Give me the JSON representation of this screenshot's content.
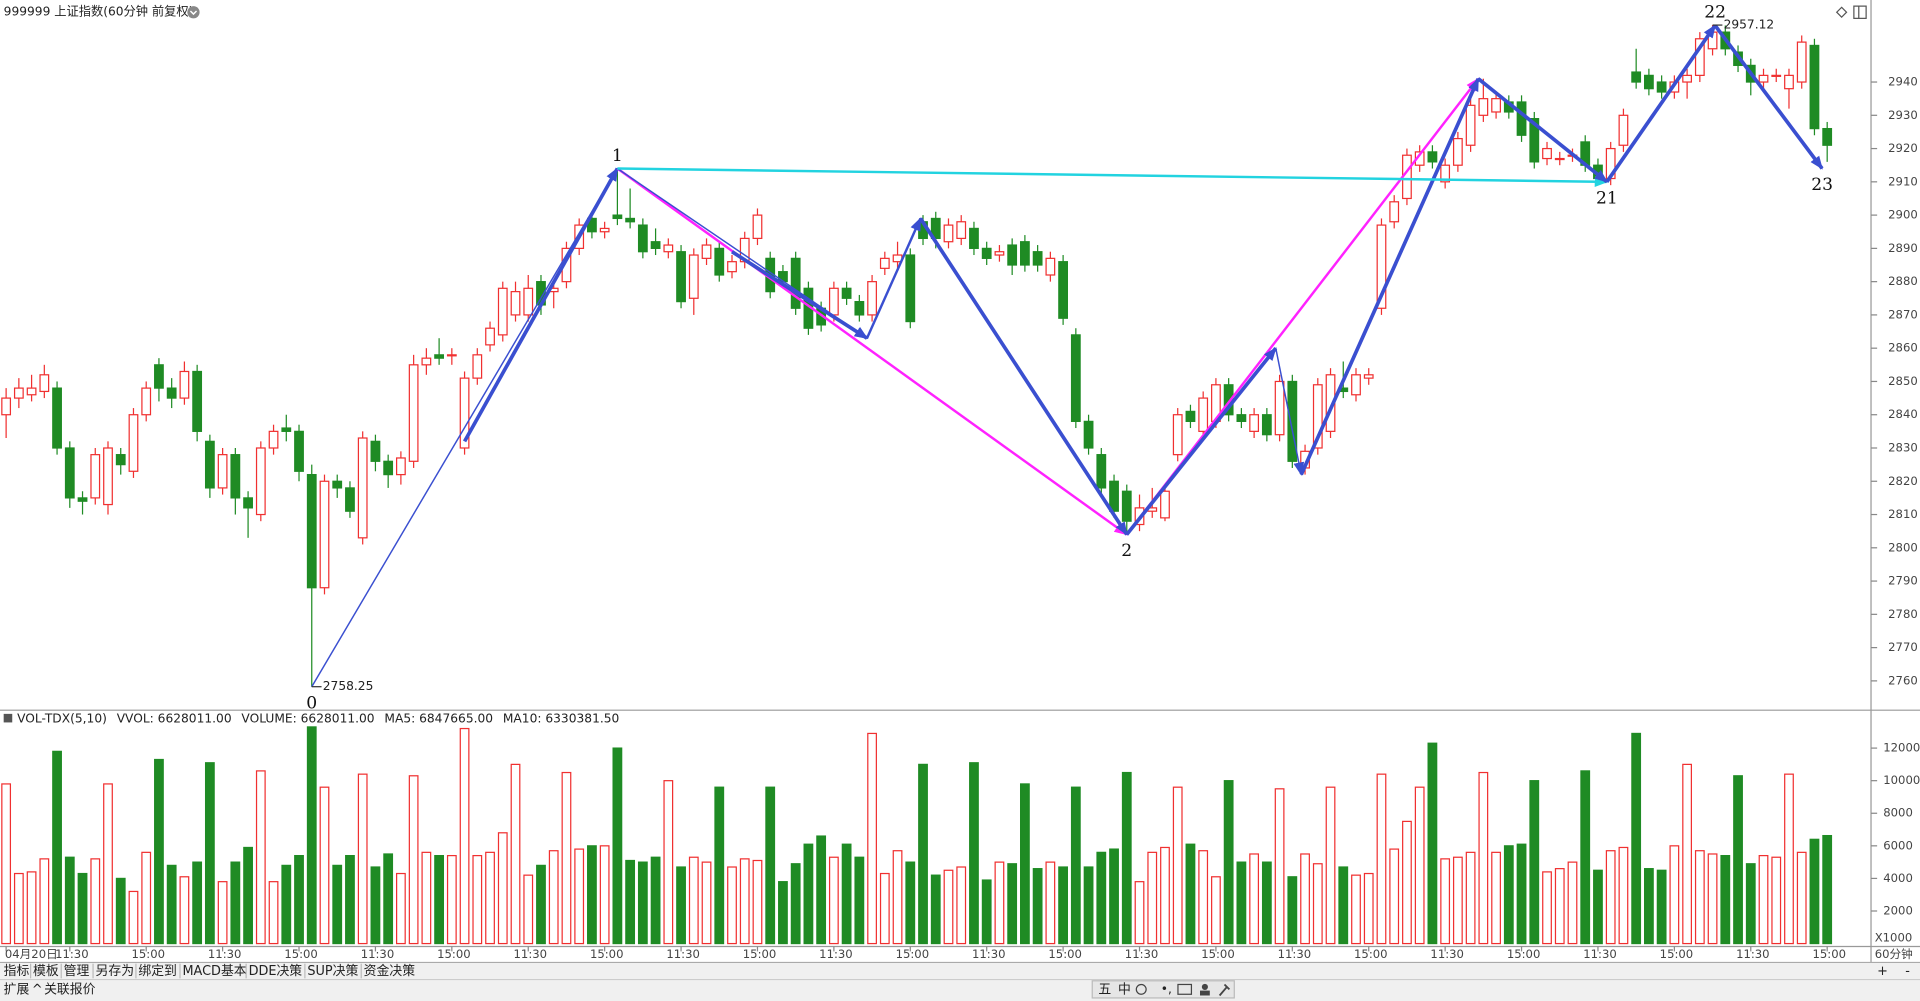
{
  "header": {
    "title": "999999 上证指数(60分钟 前复权)"
  },
  "chart_data": {
    "type": "candlestick",
    "up_color": "#f03030",
    "down_color": "#1f8b24",
    "grid": false,
    "categories": [
      "04月20日",
      null,
      null,
      null,
      null,
      "11:30",
      null,
      null,
      null,
      null,
      null,
      "15:00",
      null,
      null,
      null,
      null,
      null,
      "11:30",
      null,
      null,
      null,
      null,
      null,
      "15:00",
      null,
      null,
      null,
      null,
      null,
      "11:30",
      null,
      null,
      null,
      null,
      null,
      "15:00",
      null,
      null,
      null,
      null,
      null,
      "11:30",
      null,
      null,
      null,
      null,
      null,
      "15:00",
      null,
      null,
      null,
      null,
      null,
      "11:30",
      null,
      null,
      null,
      null,
      null,
      "15:00",
      null,
      null,
      null,
      null,
      null,
      "11:30",
      null,
      null,
      null,
      null,
      null,
      "15:00",
      null,
      null,
      null,
      null,
      null,
      "11:30",
      null,
      null,
      null,
      null,
      null,
      "15:00",
      null,
      null,
      null,
      null,
      null,
      "11:30",
      null,
      null,
      null,
      null,
      null,
      "15:00",
      null,
      null,
      null,
      null,
      null,
      "11:30",
      null,
      null,
      null,
      null,
      null,
      "15:00",
      null,
      null,
      null,
      null,
      null,
      "11:30",
      null,
      null,
      null,
      null,
      null,
      "15:00",
      null,
      null,
      null,
      null,
      null,
      "11:30",
      null,
      null,
      null,
      null,
      null,
      "15:00",
      null,
      null,
      null,
      null,
      null,
      "11:30",
      null,
      null,
      null,
      null,
      null,
      "15:00"
    ],
    "ohlc": [
      [
        2840,
        2848,
        2833,
        2845
      ],
      [
        2845,
        2851,
        2842,
        2848
      ],
      [
        2846,
        2852,
        2844,
        2848
      ],
      [
        2847,
        2855,
        2845,
        2852
      ],
      [
        2848,
        2850,
        2828,
        2830
      ],
      [
        2830,
        2832,
        2812,
        2815
      ],
      [
        2815,
        2817,
        2810,
        2814
      ],
      [
        2815,
        2830,
        2813,
        2828
      ],
      [
        2813,
        2832,
        2810,
        2830
      ],
      [
        2828,
        2830,
        2822,
        2825
      ],
      [
        2823,
        2842,
        2821,
        2840
      ],
      [
        2840,
        2850,
        2838,
        2848
      ],
      [
        2855,
        2857,
        2844,
        2848
      ],
      [
        2848,
        2851,
        2842,
        2845
      ],
      [
        2845,
        2856,
        2843,
        2853
      ],
      [
        2853,
        2855,
        2832,
        2835
      ],
      [
        2832,
        2834,
        2815,
        2818
      ],
      [
        2818,
        2830,
        2816,
        2828
      ],
      [
        2828,
        2830,
        2810,
        2815
      ],
      [
        2815,
        2817,
        2803,
        2812
      ],
      [
        2810,
        2832,
        2808,
        2830
      ],
      [
        2830,
        2837,
        2828,
        2835
      ],
      [
        2836,
        2840,
        2832,
        2835
      ],
      [
        2835,
        2837,
        2820,
        2823
      ],
      [
        2822,
        2825,
        2758.25,
        2788
      ],
      [
        2788,
        2822,
        2786,
        2820
      ],
      [
        2820,
        2822,
        2815,
        2818
      ],
      [
        2818,
        2820,
        2809,
        2811
      ],
      [
        2803,
        2835,
        2801,
        2833
      ],
      [
        2832,
        2834,
        2823,
        2826
      ],
      [
        2826,
        2828,
        2818,
        2822
      ],
      [
        2822,
        2829,
        2819,
        2827
      ],
      [
        2826,
        2858,
        2824,
        2855
      ],
      [
        2855,
        2860,
        2852,
        2857
      ],
      [
        2858,
        2863,
        2855,
        2857
      ],
      [
        2858,
        2860,
        2855,
        2858
      ],
      [
        2830,
        2853,
        2828,
        2851
      ],
      [
        2851,
        2860,
        2849,
        2858
      ],
      [
        2861,
        2868,
        2859,
        2866
      ],
      [
        2864,
        2880,
        2862,
        2878
      ],
      [
        2870,
        2880,
        2868,
        2877
      ],
      [
        2870,
        2882,
        2868,
        2878
      ],
      [
        2880,
        2882,
        2870,
        2873
      ],
      [
        2877,
        2880,
        2872,
        2878
      ],
      [
        2880,
        2892,
        2878,
        2890
      ],
      [
        2890,
        2899,
        2888,
        2897
      ],
      [
        2899,
        2901,
        2893,
        2895
      ],
      [
        2895,
        2898,
        2893,
        2896
      ],
      [
        2900,
        2914,
        2897,
        2899
      ],
      [
        2899,
        2908,
        2896,
        2898
      ],
      [
        2897,
        2899,
        2887,
        2889
      ],
      [
        2892,
        2896,
        2888,
        2890
      ],
      [
        2889,
        2893,
        2887,
        2891
      ],
      [
        2889,
        2891,
        2872,
        2874
      ],
      [
        2875,
        2890,
        2870,
        2888
      ],
      [
        2887,
        2893,
        2885,
        2891
      ],
      [
        2890,
        2892,
        2880,
        2882
      ],
      [
        2883,
        2888,
        2881,
        2886
      ],
      [
        2886,
        2895,
        2884,
        2893
      ],
      [
        2893,
        2902,
        2891,
        2900
      ],
      [
        2887,
        2889,
        2875,
        2877
      ],
      [
        2883,
        2885,
        2878,
        2880
      ],
      [
        2887,
        2889,
        2870,
        2872
      ],
      [
        2878,
        2880,
        2864,
        2866
      ],
      [
        2872,
        2874,
        2865,
        2867
      ],
      [
        2870,
        2880,
        2868,
        2878
      ],
      [
        2878,
        2880,
        2873,
        2875
      ],
      [
        2874,
        2876,
        2868,
        2870
      ],
      [
        2870,
        2882,
        2868,
        2880
      ],
      [
        2884,
        2889,
        2882,
        2887
      ],
      [
        2886,
        2892,
        2884,
        2888
      ],
      [
        2888,
        2890,
        2866,
        2868
      ],
      [
        2898,
        2900,
        2891,
        2893
      ],
      [
        2899,
        2901,
        2890,
        2893
      ],
      [
        2892,
        2899,
        2890,
        2897
      ],
      [
        2893,
        2900,
        2891,
        2898
      ],
      [
        2896,
        2898,
        2888,
        2890
      ],
      [
        2890,
        2892,
        2885,
        2887
      ],
      [
        2888,
        2891,
        2886,
        2889
      ],
      [
        2891,
        2893,
        2882,
        2885
      ],
      [
        2892,
        2894,
        2883,
        2885
      ],
      [
        2889,
        2891,
        2883,
        2885
      ],
      [
        2882,
        2889,
        2880,
        2887
      ],
      [
        2886,
        2888,
        2867,
        2869
      ],
      [
        2864,
        2866,
        2836,
        2838
      ],
      [
        2838,
        2840,
        2828,
        2830
      ],
      [
        2828,
        2830,
        2816,
        2818
      ],
      [
        2820,
        2822,
        2809,
        2811
      ],
      [
        2817,
        2819,
        2804,
        2808
      ],
      [
        2807,
        2816,
        2805,
        2812
      ],
      [
        2811,
        2818,
        2809,
        2812
      ],
      [
        2809,
        2819,
        2808,
        2817
      ],
      [
        2828,
        2842,
        2826,
        2840
      ],
      [
        2841,
        2843,
        2836,
        2838
      ],
      [
        2835,
        2847,
        2833,
        2845
      ],
      [
        2838,
        2851,
        2836,
        2849
      ],
      [
        2849,
        2851,
        2838,
        2840
      ],
      [
        2840,
        2842,
        2836,
        2838
      ],
      [
        2835,
        2842,
        2833,
        2840
      ],
      [
        2840,
        2842,
        2832,
        2834
      ],
      [
        2834,
        2852,
        2832,
        2850
      ],
      [
        2850,
        2852,
        2824,
        2826
      ],
      [
        2824,
        2831,
        2822,
        2829
      ],
      [
        2830,
        2851,
        2828,
        2849
      ],
      [
        2835,
        2854,
        2833,
        2852
      ],
      [
        2848,
        2856,
        2845,
        2847
      ],
      [
        2846,
        2854,
        2844,
        2852
      ],
      [
        2851,
        2854,
        2849,
        2852
      ],
      [
        2872,
        2899,
        2870,
        2897
      ],
      [
        2898,
        2906,
        2896,
        2904
      ],
      [
        2905,
        2920,
        2903,
        2918
      ],
      [
        2915,
        2921,
        2913,
        2919
      ],
      [
        2919,
        2921,
        2914,
        2916
      ],
      [
        2910,
        2917,
        2908,
        2915
      ],
      [
        2915,
        2925,
        2913,
        2923
      ],
      [
        2921,
        2935,
        2919,
        2933
      ],
      [
        2930,
        2941,
        2928,
        2935
      ],
      [
        2931,
        2937,
        2929,
        2935
      ],
      [
        2934,
        2936,
        2929,
        2931
      ],
      [
        2934,
        2936,
        2922,
        2924
      ],
      [
        2929,
        2931,
        2914,
        2916
      ],
      [
        2917,
        2922,
        2915,
        2920
      ],
      [
        2917,
        2919,
        2915,
        2917
      ],
      [
        2918,
        2920,
        2916,
        2918
      ],
      [
        2922,
        2924,
        2913,
        2915
      ],
      [
        2915,
        2917,
        2909,
        2911
      ],
      [
        2911,
        2922,
        2909,
        2920
      ],
      [
        2921,
        2932,
        2919,
        2930
      ],
      [
        2943,
        2950,
        2938,
        2940
      ],
      [
        2942,
        2944,
        2936,
        2938
      ],
      [
        2940,
        2942,
        2935,
        2937
      ],
      [
        2937,
        2942,
        2935,
        2940
      ],
      [
        2940,
        2944,
        2935,
        2942
      ],
      [
        2942,
        2955,
        2940,
        2953
      ],
      [
        2950,
        2957.12,
        2948,
        2955
      ],
      [
        2955,
        2957,
        2948,
        2950
      ],
      [
        2949,
        2951,
        2943,
        2945
      ],
      [
        2945,
        2947,
        2936,
        2940
      ],
      [
        2940,
        2944,
        2938,
        2942
      ],
      [
        2942,
        2944,
        2940,
        2942
      ],
      [
        2938,
        2944,
        2932,
        2942
      ],
      [
        2940,
        2954,
        2938,
        2952
      ],
      [
        2951,
        2953,
        2924,
        2926
      ],
      [
        2926,
        2928,
        2916,
        2921
      ]
    ],
    "ylim": [
      2752,
      2963
    ],
    "yticks": [
      2760,
      2770,
      2780,
      2790,
      2800,
      2810,
      2820,
      2830,
      2840,
      2850,
      2860,
      2870,
      2880,
      2890,
      2900,
      2910,
      2920,
      2930,
      2940
    ],
    "markers": [
      {
        "index": 24,
        "value": 2758.25
      },
      {
        "index": 134,
        "value": 2957.12
      }
    ],
    "zigzag_labels": [
      {
        "label": "0",
        "x": 24,
        "y": 2758.25,
        "pos": "below"
      },
      {
        "label": "1",
        "x": 48,
        "y": 2914,
        "pos": "above"
      },
      {
        "label": "2",
        "x": 88,
        "y": 2804,
        "pos": "below"
      },
      {
        "label": "21",
        "x": 125.7,
        "y": 2910,
        "pos": "below"
      },
      {
        "label": "22",
        "x": 134.2,
        "y": 2957,
        "pos": "above"
      },
      {
        "label": "23",
        "x": 142.6,
        "y": 2914,
        "pos": "below"
      }
    ],
    "lines": [
      {
        "from": [
          24,
          2758.25
        ],
        "to": [
          48,
          2914
        ],
        "color": "#3a4fd0",
        "style": "thin"
      },
      {
        "from": [
          36,
          2832
        ],
        "to": [
          48,
          2914
        ],
        "color": "#3a4fd0",
        "style": "thick"
      },
      {
        "from": [
          48,
          2914
        ],
        "to": [
          88,
          2804
        ],
        "color": "#ff22ff",
        "style": "medium"
      },
      {
        "from": [
          48,
          2914
        ],
        "to": [
          67.6,
          2863
        ],
        "color": "#3a4fd0",
        "style": "thin"
      },
      {
        "from": [
          57,
          2889
        ],
        "to": [
          67.6,
          2863
        ],
        "color": "#3a4fd0",
        "style": "thick"
      },
      {
        "from": [
          67.6,
          2863
        ],
        "to": [
          71.8,
          2899
        ],
        "color": "#3a4fd0",
        "style": "medium"
      },
      {
        "from": [
          71.8,
          2899
        ],
        "to": [
          88,
          2804
        ],
        "color": "#3a4fd0",
        "style": "thick"
      },
      {
        "from": [
          88,
          2804
        ],
        "to": [
          115.6,
          2941
        ],
        "color": "#ff22ff",
        "style": "medium"
      },
      {
        "from": [
          88,
          2804
        ],
        "to": [
          99.7,
          2860
        ],
        "color": "#3a4fd0",
        "style": "thick"
      },
      {
        "from": [
          99.7,
          2860
        ],
        "to": [
          101.7,
          2822
        ],
        "color": "#3a4fd0",
        "style": "thin"
      },
      {
        "from": [
          101.7,
          2822
        ],
        "to": [
          115.6,
          2941
        ],
        "color": "#3a4fd0",
        "style": "thick"
      },
      {
        "from": [
          48,
          2914
        ],
        "to": [
          125.7,
          2910
        ],
        "color": "#22d3e0",
        "style": "medium"
      },
      {
        "from": [
          115.6,
          2941
        ],
        "to": [
          125.7,
          2910
        ],
        "color": "#3a4fd0",
        "style": "thick"
      },
      {
        "from": [
          125.7,
          2910
        ],
        "to": [
          134.2,
          2957
        ],
        "color": "#3a4fd0",
        "style": "thick"
      },
      {
        "from": [
          134.2,
          2957
        ],
        "to": [
          142.6,
          2914
        ],
        "color": "#3a4fd0",
        "style": "thick"
      }
    ],
    "volume": {
      "title": "VOL-TDX(5,10)",
      "stats": [
        {
          "text": "VVOL: 6628011.00",
          "color": "#222222"
        },
        {
          "text": "VOLUME: 6628011.00",
          "color": "#1f6fd0"
        },
        {
          "text": "MA5: 6847665.00",
          "color": "#1f6fd0"
        },
        {
          "text": "MA10: 6330381.50",
          "color": "#a0208f"
        }
      ],
      "unit": "X1000",
      "values": [
        9800,
        4300,
        4400,
        5200,
        11800,
        5300,
        4300,
        5200,
        9800,
        4000,
        3200,
        5600,
        11300,
        4800,
        4100,
        5000,
        11100,
        3800,
        5000,
        5900,
        10600,
        3800,
        4800,
        5400,
        13300,
        9600,
        4800,
        5400,
        10400,
        4700,
        5500,
        4300,
        10300,
        5600,
        5400,
        5400,
        13200,
        5400,
        5600,
        6800,
        11000,
        4200,
        4800,
        5700,
        10500,
        5800,
        6000,
        6000,
        12000,
        5100,
        5000,
        5300,
        10000,
        4700,
        5300,
        5000,
        9600,
        4700,
        5200,
        5100,
        9600,
        3800,
        4900,
        6100,
        6600,
        5300,
        6100,
        5300,
        12900,
        4300,
        5700,
        5000,
        11000,
        4200,
        4500,
        4700,
        11100,
        3900,
        5000,
        4900,
        9800,
        4600,
        5000,
        4700,
        9600,
        4700,
        5600,
        5800,
        10500,
        3800,
        5600,
        5900,
        9600,
        6100,
        5700,
        4100,
        10000,
        5000,
        5500,
        5000,
        9500,
        4100,
        5500,
        4900,
        9600,
        4700,
        4200,
        4300,
        10400,
        5800,
        7500,
        9600,
        12300,
        5200,
        5300,
        5600,
        10500,
        5600,
        6000,
        6100,
        10000,
        4400,
        4600,
        5000,
        10600,
        4500,
        5700,
        5900,
        12900,
        4600,
        4500,
        6000,
        11000,
        5700,
        5500,
        5400,
        10300,
        4900,
        5400,
        5300,
        10400,
        5600,
        6400,
        6628
      ],
      "ylim": [
        0,
        13500
      ],
      "yticks": [
        2000,
        4000,
        6000,
        8000,
        10000,
        12000
      ]
    },
    "period": "60分钟"
  },
  "toolbar": {
    "tabs": [
      "指标",
      "模板",
      "管理",
      "另存为",
      "绑定到",
      "MACD基本",
      "DDE决策",
      "SUP决策",
      "资金决策"
    ],
    "row2": [
      "扩展",
      "^",
      "关联报价"
    ],
    "status": [
      "五",
      "中"
    ],
    "zoom": [
      "+",
      "-"
    ]
  }
}
